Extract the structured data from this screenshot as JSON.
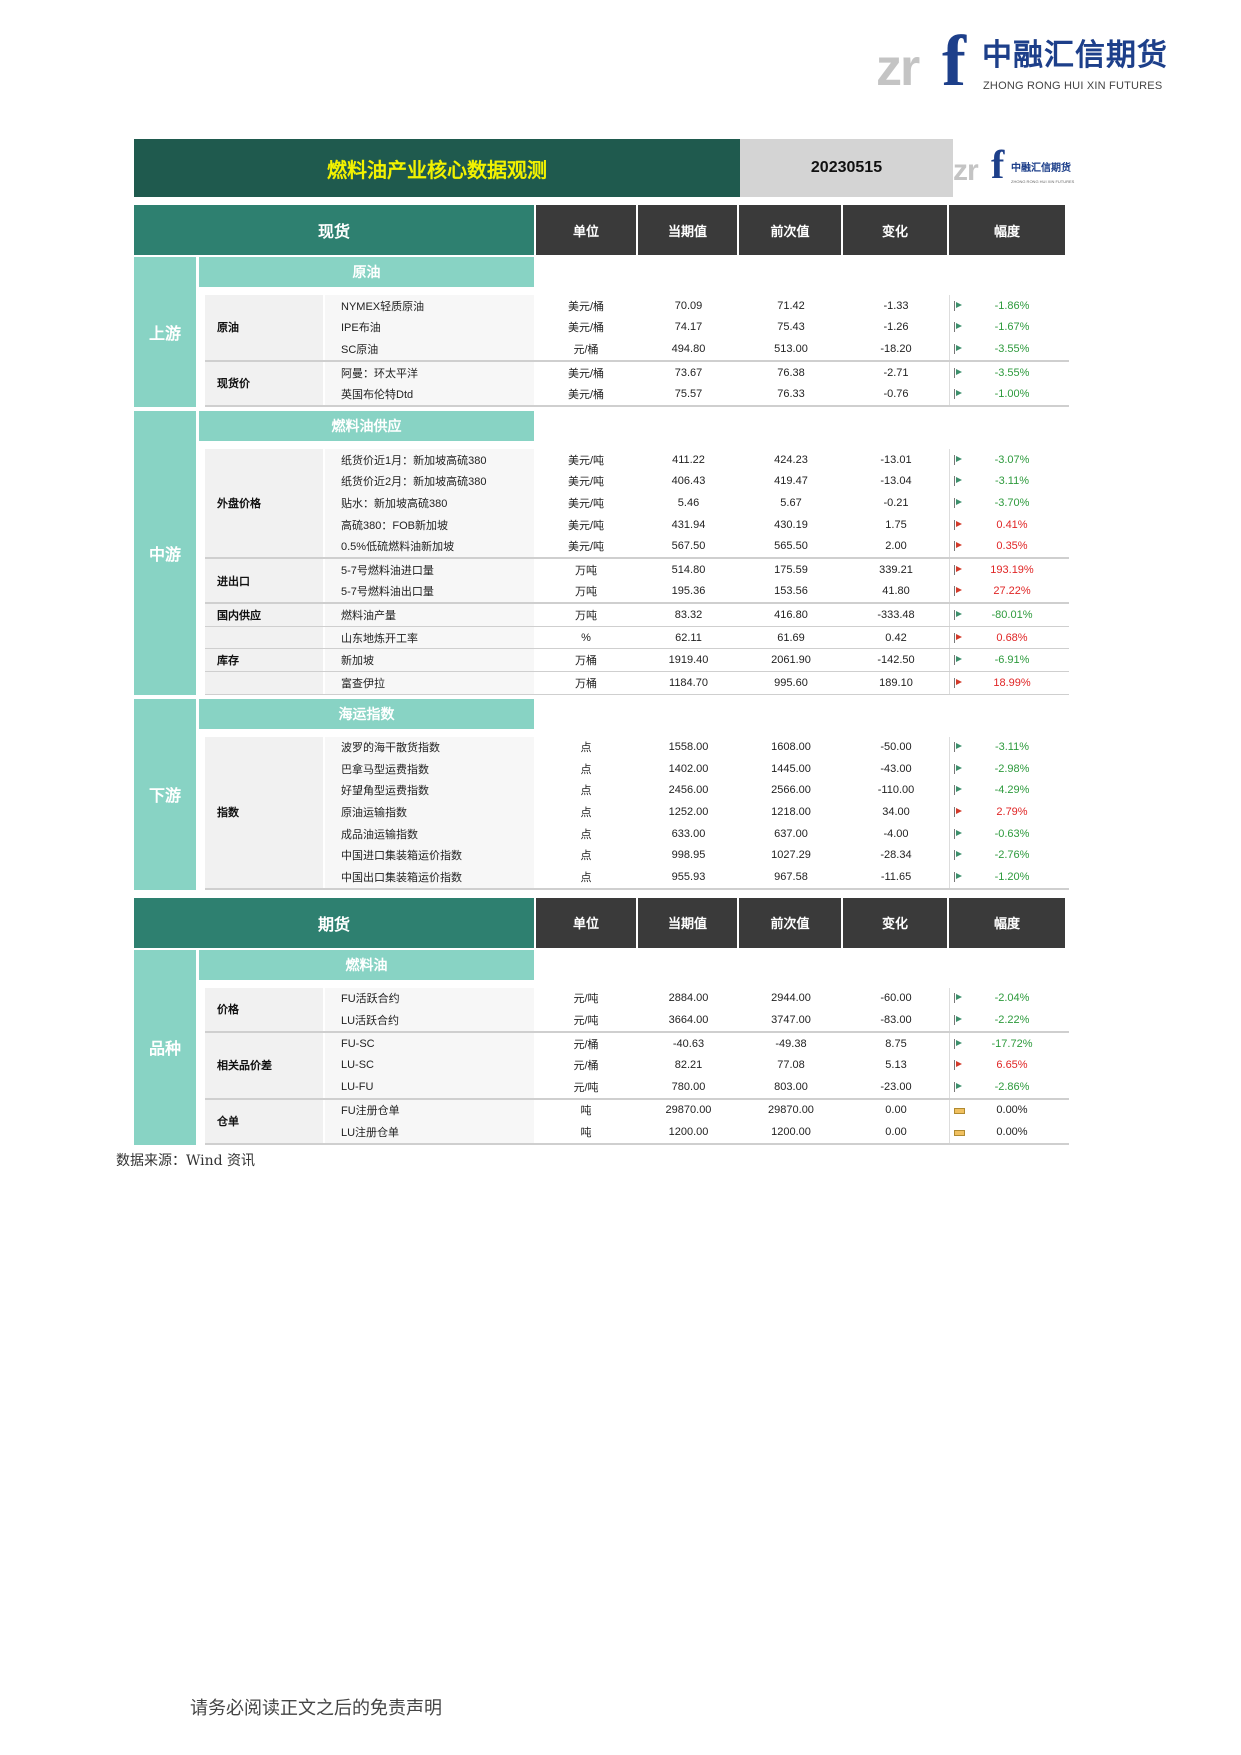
{
  "logo": {
    "mark": "zrf",
    "name_cn": "中融汇信期货",
    "name_en": "ZHONG RONG HUI XIN FUTURES",
    "brand_color": "#1d3f8a"
  },
  "title": {
    "text": "燃料油产业核心数据观测",
    "date": "20230515"
  },
  "columns": [
    "单位",
    "当期值",
    "前次值",
    "变化",
    "幅度"
  ],
  "colors": {
    "up": "#e02525",
    "down": "#2d9a3c",
    "title_bg": "#1f5a4e",
    "header_bg": "#2e8070",
    "category_bg": "#88d3c4"
  },
  "sections": [
    {
      "title": "现货",
      "blocks": [
        {
          "category": "上游",
          "subheader": "原油",
          "groups": [
            {
              "label": "原油",
              "rows": [
                {
                  "name": "NYMEX轻质原油",
                  "unit": "美元/桶",
                  "current": "70.09",
                  "previous": "71.42",
                  "change": "-1.33",
                  "pct": "-1.86%",
                  "trend": "down"
                },
                {
                  "name": "IPE布油",
                  "unit": "美元/桶",
                  "current": "74.17",
                  "previous": "75.43",
                  "change": "-1.26",
                  "pct": "-1.67%",
                  "trend": "down"
                },
                {
                  "name": "SC原油",
                  "unit": "元/桶",
                  "current": "494.80",
                  "previous": "513.00",
                  "change": "-18.20",
                  "pct": "-3.55%",
                  "trend": "down"
                }
              ]
            },
            {
              "label": "现货价",
              "rows": [
                {
                  "name": "阿曼：环太平洋",
                  "unit": "美元/桶",
                  "current": "73.67",
                  "previous": "76.38",
                  "change": "-2.71",
                  "pct": "-3.55%",
                  "trend": "down"
                },
                {
                  "name": "英国布伦特Dtd",
                  "unit": "美元/桶",
                  "current": "75.57",
                  "previous": "76.33",
                  "change": "-0.76",
                  "pct": "-1.00%",
                  "trend": "down"
                }
              ]
            }
          ]
        },
        {
          "category": "中游",
          "subheader": "燃料油供应",
          "groups": [
            {
              "label": "外盘价格",
              "rows": [
                {
                  "name": "纸货价近1月：新加坡高硫380",
                  "unit": "美元/吨",
                  "current": "411.22",
                  "previous": "424.23",
                  "change": "-13.01",
                  "pct": "-3.07%",
                  "trend": "down"
                },
                {
                  "name": "纸货价近2月：新加坡高硫380",
                  "unit": "美元/吨",
                  "current": "406.43",
                  "previous": "419.47",
                  "change": "-13.04",
                  "pct": "-3.11%",
                  "trend": "down"
                },
                {
                  "name": "贴水：新加坡高硫380",
                  "unit": "美元/吨",
                  "current": "5.46",
                  "previous": "5.67",
                  "change": "-0.21",
                  "pct": "-3.70%",
                  "trend": "down"
                },
                {
                  "name": "高硫380：FOB新加坡",
                  "unit": "美元/吨",
                  "current": "431.94",
                  "previous": "430.19",
                  "change": "1.75",
                  "pct": "0.41%",
                  "trend": "up"
                },
                {
                  "name": "0.5%低硫燃料油新加坡",
                  "unit": "美元/吨",
                  "current": "567.50",
                  "previous": "565.50",
                  "change": "2.00",
                  "pct": "0.35%",
                  "trend": "up"
                }
              ]
            },
            {
              "label": "进出口",
              "rows": [
                {
                  "name": "5-7号燃料油进口量",
                  "unit": "万吨",
                  "current": "514.80",
                  "previous": "175.59",
                  "change": "339.21",
                  "pct": "193.19%",
                  "trend": "up"
                },
                {
                  "name": "5-7号燃料油出口量",
                  "unit": "万吨",
                  "current": "195.36",
                  "previous": "153.56",
                  "change": "41.80",
                  "pct": "27.22%",
                  "trend": "up"
                }
              ]
            },
            {
              "label": "国内供应",
              "rows": [
                {
                  "name": "燃料油产量",
                  "unit": "万吨",
                  "current": "83.32",
                  "previous": "416.80",
                  "change": "-333.48",
                  "pct": "-80.01%",
                  "trend": "down"
                }
              ]
            },
            {
              "label": "",
              "rows": [
                {
                  "name": "山东地炼开工率",
                  "unit": "%",
                  "current": "62.11",
                  "previous": "61.69",
                  "change": "0.42",
                  "pct": "0.68%",
                  "trend": "up"
                }
              ]
            },
            {
              "label": "库存",
              "rows": [
                {
                  "name": "新加坡",
                  "unit": "万桶",
                  "current": "1919.40",
                  "previous": "2061.90",
                  "change": "-142.50",
                  "pct": "-6.91%",
                  "trend": "down"
                }
              ]
            },
            {
              "label": "",
              "rows": [
                {
                  "name": "富查伊拉",
                  "unit": "万桶",
                  "current": "1184.70",
                  "previous": "995.60",
                  "change": "189.10",
                  "pct": "18.99%",
                  "trend": "up"
                }
              ]
            }
          ]
        },
        {
          "category": "下游",
          "subheader": "海运指数",
          "groups": [
            {
              "label": "指数",
              "rows": [
                {
                  "name": "波罗的海干散货指数",
                  "unit": "点",
                  "current": "1558.00",
                  "previous": "1608.00",
                  "change": "-50.00",
                  "pct": "-3.11%",
                  "trend": "down"
                },
                {
                  "name": "巴拿马型运费指数",
                  "unit": "点",
                  "current": "1402.00",
                  "previous": "1445.00",
                  "change": "-43.00",
                  "pct": "-2.98%",
                  "trend": "down"
                },
                {
                  "name": "好望角型运费指数",
                  "unit": "点",
                  "current": "2456.00",
                  "previous": "2566.00",
                  "change": "-110.00",
                  "pct": "-4.29%",
                  "trend": "down"
                },
                {
                  "name": "原油运输指数",
                  "unit": "点",
                  "current": "1252.00",
                  "previous": "1218.00",
                  "change": "34.00",
                  "pct": "2.79%",
                  "trend": "up"
                },
                {
                  "name": "成品油运输指数",
                  "unit": "点",
                  "current": "633.00",
                  "previous": "637.00",
                  "change": "-4.00",
                  "pct": "-0.63%",
                  "trend": "down"
                },
                {
                  "name": "中国进口集装箱运价指数",
                  "unit": "点",
                  "current": "998.95",
                  "previous": "1027.29",
                  "change": "-28.34",
                  "pct": "-2.76%",
                  "trend": "down"
                },
                {
                  "name": "中国出口集装箱运价指数",
                  "unit": "点",
                  "current": "955.93",
                  "previous": "967.58",
                  "change": "-11.65",
                  "pct": "-1.20%",
                  "trend": "down"
                }
              ]
            }
          ]
        }
      ]
    },
    {
      "title": "期货",
      "blocks": [
        {
          "category": "品种",
          "subheader": "燃料油",
          "groups": [
            {
              "label": "价格",
              "rows": [
                {
                  "name": "FU活跃合约",
                  "unit": "元/吨",
                  "current": "2884.00",
                  "previous": "2944.00",
                  "change": "-60.00",
                  "pct": "-2.04%",
                  "trend": "down"
                },
                {
                  "name": "LU活跃合约",
                  "unit": "元/吨",
                  "current": "3664.00",
                  "previous": "3747.00",
                  "change": "-83.00",
                  "pct": "-2.22%",
                  "trend": "down"
                }
              ]
            },
            {
              "label": "相关品价差",
              "rows": [
                {
                  "name": "FU-SC",
                  "unit": "元/桶",
                  "current": "-40.63",
                  "previous": "-49.38",
                  "change": "8.75",
                  "pct": "-17.72%",
                  "trend": "down"
                },
                {
                  "name": "LU-SC",
                  "unit": "元/桶",
                  "current": "82.21",
                  "previous": "77.08",
                  "change": "5.13",
                  "pct": "6.65%",
                  "trend": "up"
                },
                {
                  "name": "LU-FU",
                  "unit": "元/吨",
                  "current": "780.00",
                  "previous": "803.00",
                  "change": "-23.00",
                  "pct": "-2.86%",
                  "trend": "down"
                }
              ]
            },
            {
              "label": "仓单",
              "rows": [
                {
                  "name": "FU注册仓单",
                  "unit": "吨",
                  "current": "29870.00",
                  "previous": "29870.00",
                  "change": "0.00",
                  "pct": "0.00%",
                  "trend": "flat"
                },
                {
                  "name": "LU注册仓单",
                  "unit": "吨",
                  "current": "1200.00",
                  "previous": "1200.00",
                  "change": "0.00",
                  "pct": "0.00%",
                  "trend": "flat"
                }
              ]
            }
          ]
        }
      ]
    }
  ],
  "source": "数据来源：Wind 资讯",
  "disclaimer": "请务必阅读正文之后的免责声明"
}
